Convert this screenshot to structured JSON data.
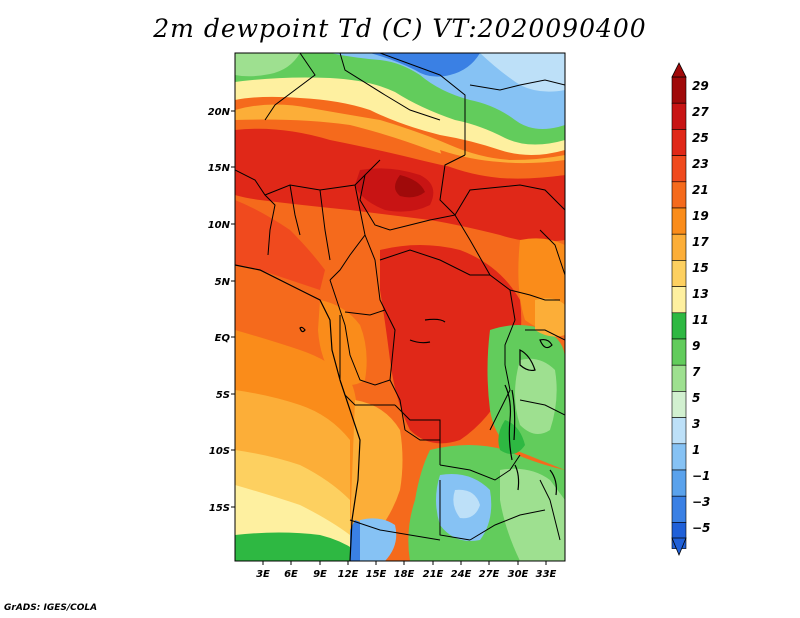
{
  "title": "2m dewpoint Td (C) VT:2020090400",
  "credit": "GrADS: IGES/COLA",
  "map": {
    "variable": "2m dewpoint",
    "units": "C",
    "valid_time": "2020090400",
    "lon_range": [
      0,
      35
    ],
    "lat_range": [
      -20,
      25
    ],
    "lat_ticks": [
      {
        "value": 20,
        "label": "20N"
      },
      {
        "value": 15,
        "label": "15N"
      },
      {
        "value": 10,
        "label": "10N"
      },
      {
        "value": 5,
        "label": "5N"
      },
      {
        "value": 0,
        "label": "EQ"
      },
      {
        "value": -5,
        "label": "5S"
      },
      {
        "value": -10,
        "label": "10S"
      },
      {
        "value": -15,
        "label": "15S"
      }
    ],
    "lon_ticks": [
      {
        "value": 3,
        "label": "3E"
      },
      {
        "value": 6,
        "label": "6E"
      },
      {
        "value": 9,
        "label": "9E"
      },
      {
        "value": 12,
        "label": "12E"
      },
      {
        "value": 15,
        "label": "15E"
      },
      {
        "value": 18,
        "label": "18E"
      },
      {
        "value": 21,
        "label": "21E"
      },
      {
        "value": 24,
        "label": "24E"
      },
      {
        "value": 27,
        "label": "27E"
      },
      {
        "value": 30,
        "label": "30E"
      },
      {
        "value": 33,
        "label": "33E"
      }
    ]
  },
  "colorbar": {
    "labels": [
      "29",
      "27",
      "25",
      "23",
      "21",
      "19",
      "17",
      "15",
      "13",
      "11",
      "9",
      "7",
      "5",
      "3",
      "1",
      "−1",
      "−3",
      "−5"
    ],
    "colors_top_to_bottom": [
      "#a00a0a",
      "#c81414",
      "#e02818",
      "#f04a1e",
      "#f56a1c",
      "#fa8c1a",
      "#fcae38",
      "#fdd060",
      "#fef0a0",
      "#2eb842",
      "#62cc5c",
      "#9ee090",
      "#d2f0d0",
      "#bde0f8",
      "#86c2f4",
      "#5aa2ec",
      "#3a80e4",
      "#2060d8"
    ]
  }
}
